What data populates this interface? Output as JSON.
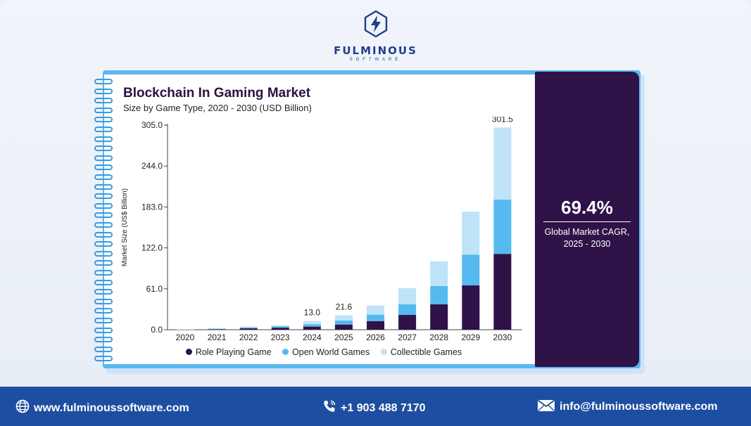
{
  "brand": {
    "name": "FULMINOUS",
    "tagline": "SOFTWARE"
  },
  "chart_title": "Blockchain In Gaming Market",
  "chart_subtitle": "Size by Game Type, 2020 - 2030 (USD Billion)",
  "highlight": {
    "value": "69.4%",
    "label_line1": "Global Market CAGR,",
    "label_line2": "2025 - 2030"
  },
  "colors": {
    "role_playing": "#2f1247",
    "open_world": "#56baf0",
    "collectible": "#bfe3f8",
    "panel": "#2f1247",
    "footer": "#1e4ea1"
  },
  "chart_data": {
    "type": "bar",
    "stacked": true,
    "title": "Blockchain In Gaming Market",
    "subtitle": "Size by Game Type, 2020 - 2030 (USD Billion)",
    "ylabel": "Market Size (US$ Billion)",
    "xlabel": "",
    "ylim": [
      0,
      305
    ],
    "yticks": [
      "305.0",
      "244.0",
      "183.0",
      "122.0",
      "61.0",
      "0.0"
    ],
    "categories": [
      "2020",
      "2021",
      "2022",
      "2023",
      "2024",
      "2025",
      "2026",
      "2027",
      "2028",
      "2029",
      "2030"
    ],
    "series": [
      {
        "name": "Role Playing Game",
        "values": [
          0.3,
          0.8,
          2.0,
          3.0,
          4.6,
          7.7,
          12.8,
          22.0,
          38.0,
          66.0,
          113.0
        ]
      },
      {
        "name": "Open World Games",
        "values": [
          0.2,
          0.6,
          1.4,
          2.0,
          3.6,
          5.9,
          9.6,
          16.0,
          27.0,
          46.0,
          81.0
        ]
      },
      {
        "name": "Collectible Games",
        "values": [
          0.2,
          0.6,
          1.2,
          1.6,
          4.8,
          8.0,
          13.6,
          24.0,
          37.0,
          64.0,
          107.5
        ]
      }
    ],
    "data_labels": [
      {
        "category": "2024",
        "text": "13.0"
      },
      {
        "category": "2025",
        "text": "21.6"
      },
      {
        "category": "2030",
        "text": "301.5"
      }
    ],
    "legend_position": "bottom",
    "grid": false
  },
  "footer": {
    "website": "www.fulminoussoftware.com",
    "phone": "+1 903 488 7170",
    "email": "info@fulminoussoftware.com"
  }
}
